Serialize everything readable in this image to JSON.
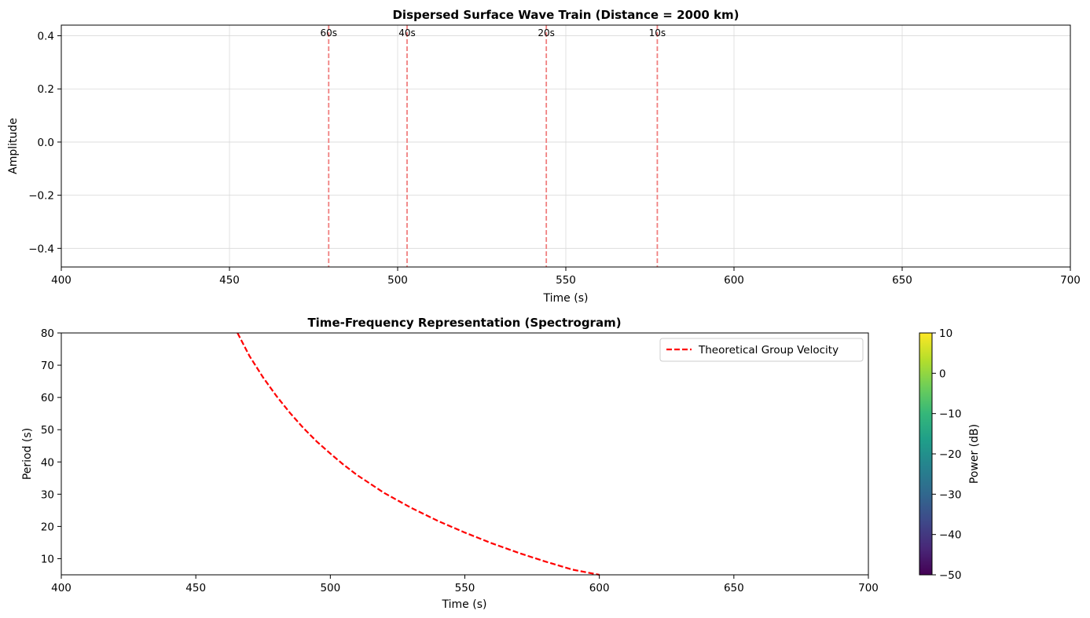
{
  "chart_data": [
    {
      "type": "line",
      "title": "Dispersed Surface Wave Train (Distance = 2000 km)",
      "xlabel": "Time (s)",
      "ylabel": "Amplitude",
      "xlim": [
        400,
        700
      ],
      "ylim": [
        -0.47,
        0.44
      ],
      "xticks": [
        400,
        450,
        500,
        550,
        600,
        650,
        700
      ],
      "xtick_labels": [
        "400",
        "450",
        "500",
        "550",
        "600",
        "650",
        "700"
      ],
      "yticks": [
        -0.4,
        -0.2,
        0.0,
        0.2,
        0.4
      ],
      "ytick_labels": [
        "−0.4",
        "−0.2",
        "0.0",
        "0.2",
        "0.4"
      ],
      "grid": true,
      "arrival_markers": [
        {
          "time": 479.5,
          "label": "60s"
        },
        {
          "time": 502.8,
          "label": "40s"
        },
        {
          "time": 544.2,
          "label": "20s"
        },
        {
          "time": 577.2,
          "label": "10s"
        }
      ],
      "marker_color": "#f08080"
    },
    {
      "type": "line",
      "title": "Time-Frequency Representation (Spectrogram)",
      "xlabel": "Time (s)",
      "ylabel": "Period (s)",
      "xlim": [
        400,
        700
      ],
      "ylim": [
        5,
        80
      ],
      "xticks": [
        400,
        450,
        500,
        550,
        600,
        650,
        700
      ],
      "xtick_labels": [
        "400",
        "450",
        "500",
        "550",
        "600",
        "650",
        "700"
      ],
      "yticks": [
        10,
        20,
        30,
        40,
        50,
        60,
        70,
        80
      ],
      "ytick_labels": [
        "10",
        "20",
        "30",
        "40",
        "50",
        "60",
        "70",
        "80"
      ],
      "grid": false,
      "legend_position": "top-right",
      "series": [
        {
          "name": "Theoretical Group Velocity",
          "color": "#ff0000",
          "style": "dashed",
          "x": [
            465.5,
            470,
            475,
            480,
            485,
            490,
            495,
            500,
            505,
            510,
            520,
            530,
            540,
            550,
            560,
            570,
            580,
            590,
            600
          ],
          "y": [
            80,
            72.8,
            66.2,
            60.4,
            55.2,
            50.5,
            46.3,
            42.6,
            39.1,
            35.9,
            30.4,
            25.8,
            21.7,
            18.1,
            14.8,
            11.8,
            9.1,
            6.6,
            5
          ]
        }
      ],
      "colorbar": {
        "label": "Power (dB)",
        "range": [
          -50,
          10
        ],
        "ticks": [
          -50,
          -40,
          -30,
          -20,
          -10,
          0,
          10
        ],
        "tick_labels": [
          "−50",
          "−40",
          "−30",
          "−20",
          "−10",
          "0",
          "10"
        ],
        "colormap": [
          "#440154",
          "#482878",
          "#3e4989",
          "#31688e",
          "#26828e",
          "#1f9e89",
          "#35b779",
          "#6ece58",
          "#b5de2b",
          "#fde725"
        ]
      }
    }
  ]
}
